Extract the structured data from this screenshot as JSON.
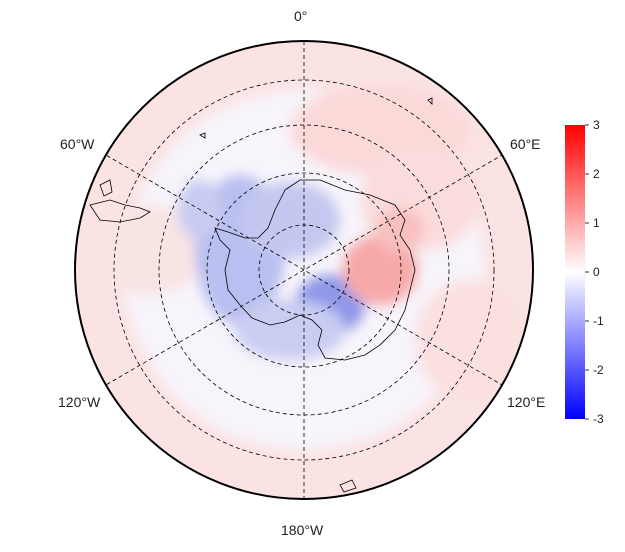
{
  "map": {
    "projection": "south-polar-stereographic",
    "meridian_labels": {
      "top": "0°",
      "upper_right": "60°E",
      "lower_right": "120°E",
      "bottom": "180°W",
      "lower_left": "120°W",
      "upper_left": "60°W"
    },
    "graticule": {
      "style": "dashed",
      "latitude_rings": 4,
      "meridian_spokes_deg": 60
    },
    "field_pattern": [
      {
        "region": "Antarctic continent interior / West Antarctica",
        "value": -1.5
      },
      {
        "region": "East Antarctic coast near 60–90°E",
        "value": 1.5
      },
      {
        "region": "Southern Ocean ring",
        "value": 0.4
      }
    ]
  },
  "colorbar": {
    "ticks": [
      "3",
      "2",
      "1",
      "0",
      "-1",
      "-2",
      "-3"
    ],
    "min": -3,
    "max": 3,
    "colors": {
      "low": "#0000ff",
      "mid": "#ffffff",
      "high": "#ff0000"
    }
  }
}
